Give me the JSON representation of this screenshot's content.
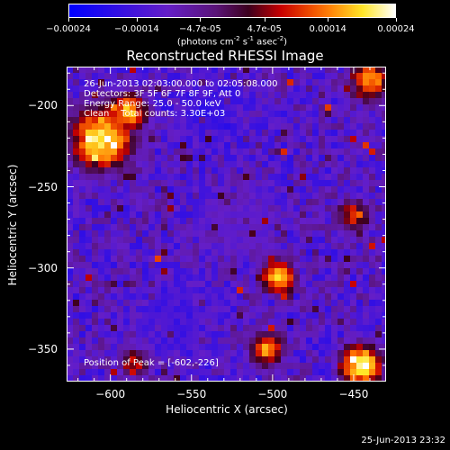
{
  "colorbar": {
    "ticks": [
      "-0.00024",
      "-0.00014",
      "-4.7e-05",
      "4.7e-05",
      "0.00014",
      "0.00024"
    ],
    "unit_main": "(photons cm",
    "unit_exp1": "-2",
    "unit_mid": " s",
    "unit_exp2": "-1",
    "unit_mid2": " asec",
    "unit_exp3": "-2",
    "unit_end": ")"
  },
  "info": {
    "line1": "26-Jun-2013 02:03:00.000 to 02:05:08.000",
    "line2": "Detectors: 3F 5F 6F 7F 8F 9F, Att 0",
    "line3": "Energy Range: 25.0 - 50.0 keV",
    "line4": "Clean    Total counts: 3.30E+03",
    "peak": "Position of Peak = [-602,-226]"
  },
  "timestamp": "25-Jun-2013 23:32",
  "colors": {
    "low": "#0000ff",
    "mid": "#8a20c0",
    "high": "#ffffff",
    "background": "#000000"
  },
  "chart_data": {
    "type": "heatmap",
    "title": "Reconstructed RHESSI Image",
    "xlabel": "Heliocentric X (arcsec)",
    "ylabel": "Heliocentric Y (arcsec)",
    "xlim": [
      -627,
      -430
    ],
    "ylim": [
      -370,
      -176
    ],
    "xticks": [
      -600,
      -550,
      -500,
      -450
    ],
    "yticks": [
      -200,
      -250,
      -300,
      -350
    ],
    "xtick_labels": [
      "−600",
      "−550",
      "−500",
      "−450"
    ],
    "ytick_labels": [
      "−200",
      "−250",
      "−300",
      "−350"
    ],
    "colorbar_range": [
      -0.00024,
      0.00024
    ],
    "peak": [
      -602,
      -226
    ],
    "bright_sources": [
      {
        "x": -605,
        "y": -220,
        "level": 0.95,
        "r": 18
      },
      {
        "x": -590,
        "y": -205,
        "level": 0.85,
        "r": 12
      },
      {
        "x": -497,
        "y": -305,
        "level": 0.9,
        "r": 10
      },
      {
        "x": -440,
        "y": -185,
        "level": 0.8,
        "r": 12
      },
      {
        "x": -450,
        "y": -268,
        "level": 0.7,
        "r": 10
      },
      {
        "x": -445,
        "y": -360,
        "level": 0.95,
        "r": 12
      },
      {
        "x": -503,
        "y": -350,
        "level": 0.8,
        "r": 10
      },
      {
        "x": -585,
        "y": -358,
        "level": 0.7,
        "r": 9
      }
    ],
    "dim_regions": [
      {
        "x": -540,
        "y": -205,
        "level": 0.15,
        "r": 14
      },
      {
        "x": -560,
        "y": -330,
        "level": 0.2,
        "r": 18
      },
      {
        "x": -520,
        "y": -270,
        "level": 0.3,
        "r": 16
      }
    ]
  }
}
